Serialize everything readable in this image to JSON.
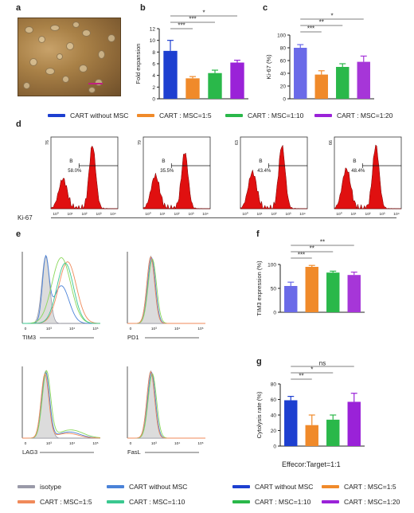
{
  "panel_labels": [
    "a",
    "b",
    "c",
    "d",
    "e",
    "f",
    "g"
  ],
  "legend_top": {
    "items": [
      {
        "label": "CART without MSC",
        "color": "#1d3fd0"
      },
      {
        "label": "CART : MSC=1:5",
        "color": "#f08a2a"
      },
      {
        "label": "CART : MSC=1:10",
        "color": "#2ab84a"
      },
      {
        "label": "CART : MSC=1:20",
        "color": "#9a22d8"
      }
    ]
  },
  "legend_e": {
    "items": [
      {
        "label": "isotype",
        "color": "#9a9aa8"
      },
      {
        "label": "CART without MSC",
        "color": "#4a82d8"
      },
      {
        "label": "CART : MSC=1:5",
        "color": "#f08a5a"
      },
      {
        "label": "CART : MSC=1:10",
        "color": "#3ac890"
      }
    ]
  },
  "legend_g": {
    "items": [
      {
        "label": "CART without MSC",
        "color": "#1d3fd0"
      },
      {
        "label": "CART : MSC=1:5",
        "color": "#f08a2a"
      },
      {
        "label": "CART : MSC=1:10",
        "color": "#2ab84a"
      },
      {
        "label": "CART : MSC=1:20",
        "color": "#9a22d8"
      }
    ]
  },
  "chart_data": [
    {
      "id": "b",
      "type": "bar",
      "ylabel": "Fold expansion",
      "ylim": [
        0,
        12
      ],
      "yticks": [
        "0",
        "2",
        "4",
        "6",
        "8",
        "10",
        "12"
      ],
      "values": [
        8.2,
        3.5,
        4.4,
        6.2
      ],
      "errors": [
        1.8,
        0.3,
        0.5,
        0.4
      ],
      "colors": [
        "#1d3fd0",
        "#f08a2a",
        "#2ab84a",
        "#9a22d8"
      ],
      "significance": [
        "***",
        "***",
        "*"
      ]
    },
    {
      "id": "c",
      "type": "bar",
      "ylabel": "Ki-67 (%)",
      "ylim": [
        0,
        100
      ],
      "yticks": [
        "0",
        "20",
        "40",
        "60",
        "80",
        "100"
      ],
      "values": [
        80,
        38,
        50,
        58
      ],
      "errors": [
        5,
        6,
        5,
        9
      ],
      "colors": [
        "#6a6ae8",
        "#f08a2a",
        "#2ab84a",
        "#a636d8"
      ],
      "significance": [
        "***",
        "**",
        "*"
      ]
    },
    {
      "id": "d",
      "type": "histogram",
      "xlabel": "Ki-67",
      "gate_label": "B",
      "ymax_labels": [
        "76",
        "79",
        "63",
        "66"
      ],
      "xtick_labels": [
        "10⁰",
        "10¹",
        "10²",
        "10³",
        "10⁴"
      ],
      "percentages": [
        "58.0%",
        "35.5%",
        "43.4%",
        "48.4%"
      ],
      "fill": "#e01010"
    },
    {
      "id": "e",
      "type": "histogram-overlay",
      "panels": [
        {
          "marker": "TIM3"
        },
        {
          "marker": "PD1"
        },
        {
          "marker": "LAG3"
        },
        {
          "marker": "FasL"
        }
      ],
      "xtick_labels": [
        "0",
        "10³",
        "10⁴",
        "10⁵"
      ]
    },
    {
      "id": "f",
      "type": "bar",
      "ylabel": "TIM3 expression (%)",
      "ylim": [
        0,
        100
      ],
      "yticks": [
        "0",
        "50",
        "100"
      ],
      "values": [
        55,
        95,
        83,
        78
      ],
      "errors": [
        8,
        3,
        3,
        6
      ],
      "colors": [
        "#6a6ae8",
        "#f08a2a",
        "#2ab84a",
        "#a636d8"
      ],
      "significance": [
        "***",
        "**",
        "**"
      ]
    },
    {
      "id": "g",
      "type": "bar",
      "ylabel": "Cytolysis rate (%)",
      "xlabel": "Effecor:Target=1:1",
      "ylim": [
        0,
        80
      ],
      "yticks": [
        "0",
        "20",
        "40",
        "60",
        "80"
      ],
      "values": [
        59,
        27,
        34,
        57
      ],
      "errors": [
        5,
        13,
        6,
        11
      ],
      "colors": [
        "#1d3fd0",
        "#f08a2a",
        "#2ab84a",
        "#9a22d8"
      ],
      "significance": [
        "**",
        "*",
        "ns"
      ]
    }
  ]
}
